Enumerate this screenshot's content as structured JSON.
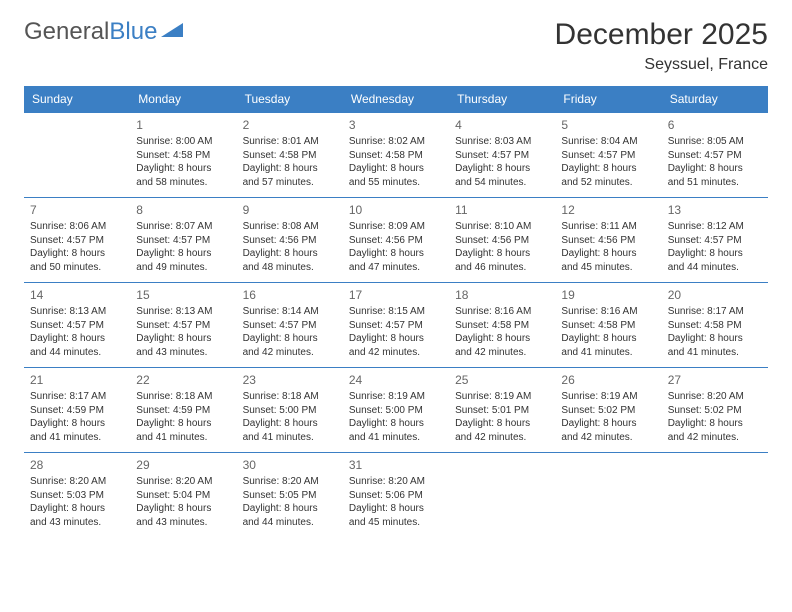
{
  "logo": {
    "word1": "General",
    "word2": "Blue"
  },
  "title": "December 2025",
  "subtitle": "Seyssuel, France",
  "colors": {
    "header_bg": "#3b7fc4",
    "header_text": "#ffffff",
    "divider": "#3b7fc4",
    "text": "#333333",
    "daynum": "#666666",
    "background": "#ffffff"
  },
  "fonts": {
    "title": 30,
    "subtitle": 16,
    "dayhead": 12,
    "daynum": 12,
    "body": 10
  },
  "day_names": [
    "Sunday",
    "Monday",
    "Tuesday",
    "Wednesday",
    "Thursday",
    "Friday",
    "Saturday"
  ],
  "start_col": 1,
  "days": [
    {
      "n": "1",
      "sr": "Sunrise: 8:00 AM",
      "ss": "Sunset: 4:58 PM",
      "d1": "Daylight: 8 hours",
      "d2": "and 58 minutes."
    },
    {
      "n": "2",
      "sr": "Sunrise: 8:01 AM",
      "ss": "Sunset: 4:58 PM",
      "d1": "Daylight: 8 hours",
      "d2": "and 57 minutes."
    },
    {
      "n": "3",
      "sr": "Sunrise: 8:02 AM",
      "ss": "Sunset: 4:58 PM",
      "d1": "Daylight: 8 hours",
      "d2": "and 55 minutes."
    },
    {
      "n": "4",
      "sr": "Sunrise: 8:03 AM",
      "ss": "Sunset: 4:57 PM",
      "d1": "Daylight: 8 hours",
      "d2": "and 54 minutes."
    },
    {
      "n": "5",
      "sr": "Sunrise: 8:04 AM",
      "ss": "Sunset: 4:57 PM",
      "d1": "Daylight: 8 hours",
      "d2": "and 52 minutes."
    },
    {
      "n": "6",
      "sr": "Sunrise: 8:05 AM",
      "ss": "Sunset: 4:57 PM",
      "d1": "Daylight: 8 hours",
      "d2": "and 51 minutes."
    },
    {
      "n": "7",
      "sr": "Sunrise: 8:06 AM",
      "ss": "Sunset: 4:57 PM",
      "d1": "Daylight: 8 hours",
      "d2": "and 50 minutes."
    },
    {
      "n": "8",
      "sr": "Sunrise: 8:07 AM",
      "ss": "Sunset: 4:57 PM",
      "d1": "Daylight: 8 hours",
      "d2": "and 49 minutes."
    },
    {
      "n": "9",
      "sr": "Sunrise: 8:08 AM",
      "ss": "Sunset: 4:56 PM",
      "d1": "Daylight: 8 hours",
      "d2": "and 48 minutes."
    },
    {
      "n": "10",
      "sr": "Sunrise: 8:09 AM",
      "ss": "Sunset: 4:56 PM",
      "d1": "Daylight: 8 hours",
      "d2": "and 47 minutes."
    },
    {
      "n": "11",
      "sr": "Sunrise: 8:10 AM",
      "ss": "Sunset: 4:56 PM",
      "d1": "Daylight: 8 hours",
      "d2": "and 46 minutes."
    },
    {
      "n": "12",
      "sr": "Sunrise: 8:11 AM",
      "ss": "Sunset: 4:56 PM",
      "d1": "Daylight: 8 hours",
      "d2": "and 45 minutes."
    },
    {
      "n": "13",
      "sr": "Sunrise: 8:12 AM",
      "ss": "Sunset: 4:57 PM",
      "d1": "Daylight: 8 hours",
      "d2": "and 44 minutes."
    },
    {
      "n": "14",
      "sr": "Sunrise: 8:13 AM",
      "ss": "Sunset: 4:57 PM",
      "d1": "Daylight: 8 hours",
      "d2": "and 44 minutes."
    },
    {
      "n": "15",
      "sr": "Sunrise: 8:13 AM",
      "ss": "Sunset: 4:57 PM",
      "d1": "Daylight: 8 hours",
      "d2": "and 43 minutes."
    },
    {
      "n": "16",
      "sr": "Sunrise: 8:14 AM",
      "ss": "Sunset: 4:57 PM",
      "d1": "Daylight: 8 hours",
      "d2": "and 42 minutes."
    },
    {
      "n": "17",
      "sr": "Sunrise: 8:15 AM",
      "ss": "Sunset: 4:57 PM",
      "d1": "Daylight: 8 hours",
      "d2": "and 42 minutes."
    },
    {
      "n": "18",
      "sr": "Sunrise: 8:16 AM",
      "ss": "Sunset: 4:58 PM",
      "d1": "Daylight: 8 hours",
      "d2": "and 42 minutes."
    },
    {
      "n": "19",
      "sr": "Sunrise: 8:16 AM",
      "ss": "Sunset: 4:58 PM",
      "d1": "Daylight: 8 hours",
      "d2": "and 41 minutes."
    },
    {
      "n": "20",
      "sr": "Sunrise: 8:17 AM",
      "ss": "Sunset: 4:58 PM",
      "d1": "Daylight: 8 hours",
      "d2": "and 41 minutes."
    },
    {
      "n": "21",
      "sr": "Sunrise: 8:17 AM",
      "ss": "Sunset: 4:59 PM",
      "d1": "Daylight: 8 hours",
      "d2": "and 41 minutes."
    },
    {
      "n": "22",
      "sr": "Sunrise: 8:18 AM",
      "ss": "Sunset: 4:59 PM",
      "d1": "Daylight: 8 hours",
      "d2": "and 41 minutes."
    },
    {
      "n": "23",
      "sr": "Sunrise: 8:18 AM",
      "ss": "Sunset: 5:00 PM",
      "d1": "Daylight: 8 hours",
      "d2": "and 41 minutes."
    },
    {
      "n": "24",
      "sr": "Sunrise: 8:19 AM",
      "ss": "Sunset: 5:00 PM",
      "d1": "Daylight: 8 hours",
      "d2": "and 41 minutes."
    },
    {
      "n": "25",
      "sr": "Sunrise: 8:19 AM",
      "ss": "Sunset: 5:01 PM",
      "d1": "Daylight: 8 hours",
      "d2": "and 42 minutes."
    },
    {
      "n": "26",
      "sr": "Sunrise: 8:19 AM",
      "ss": "Sunset: 5:02 PM",
      "d1": "Daylight: 8 hours",
      "d2": "and 42 minutes."
    },
    {
      "n": "27",
      "sr": "Sunrise: 8:20 AM",
      "ss": "Sunset: 5:02 PM",
      "d1": "Daylight: 8 hours",
      "d2": "and 42 minutes."
    },
    {
      "n": "28",
      "sr": "Sunrise: 8:20 AM",
      "ss": "Sunset: 5:03 PM",
      "d1": "Daylight: 8 hours",
      "d2": "and 43 minutes."
    },
    {
      "n": "29",
      "sr": "Sunrise: 8:20 AM",
      "ss": "Sunset: 5:04 PM",
      "d1": "Daylight: 8 hours",
      "d2": "and 43 minutes."
    },
    {
      "n": "30",
      "sr": "Sunrise: 8:20 AM",
      "ss": "Sunset: 5:05 PM",
      "d1": "Daylight: 8 hours",
      "d2": "and 44 minutes."
    },
    {
      "n": "31",
      "sr": "Sunrise: 8:20 AM",
      "ss": "Sunset: 5:06 PM",
      "d1": "Daylight: 8 hours",
      "d2": "and 45 minutes."
    }
  ]
}
